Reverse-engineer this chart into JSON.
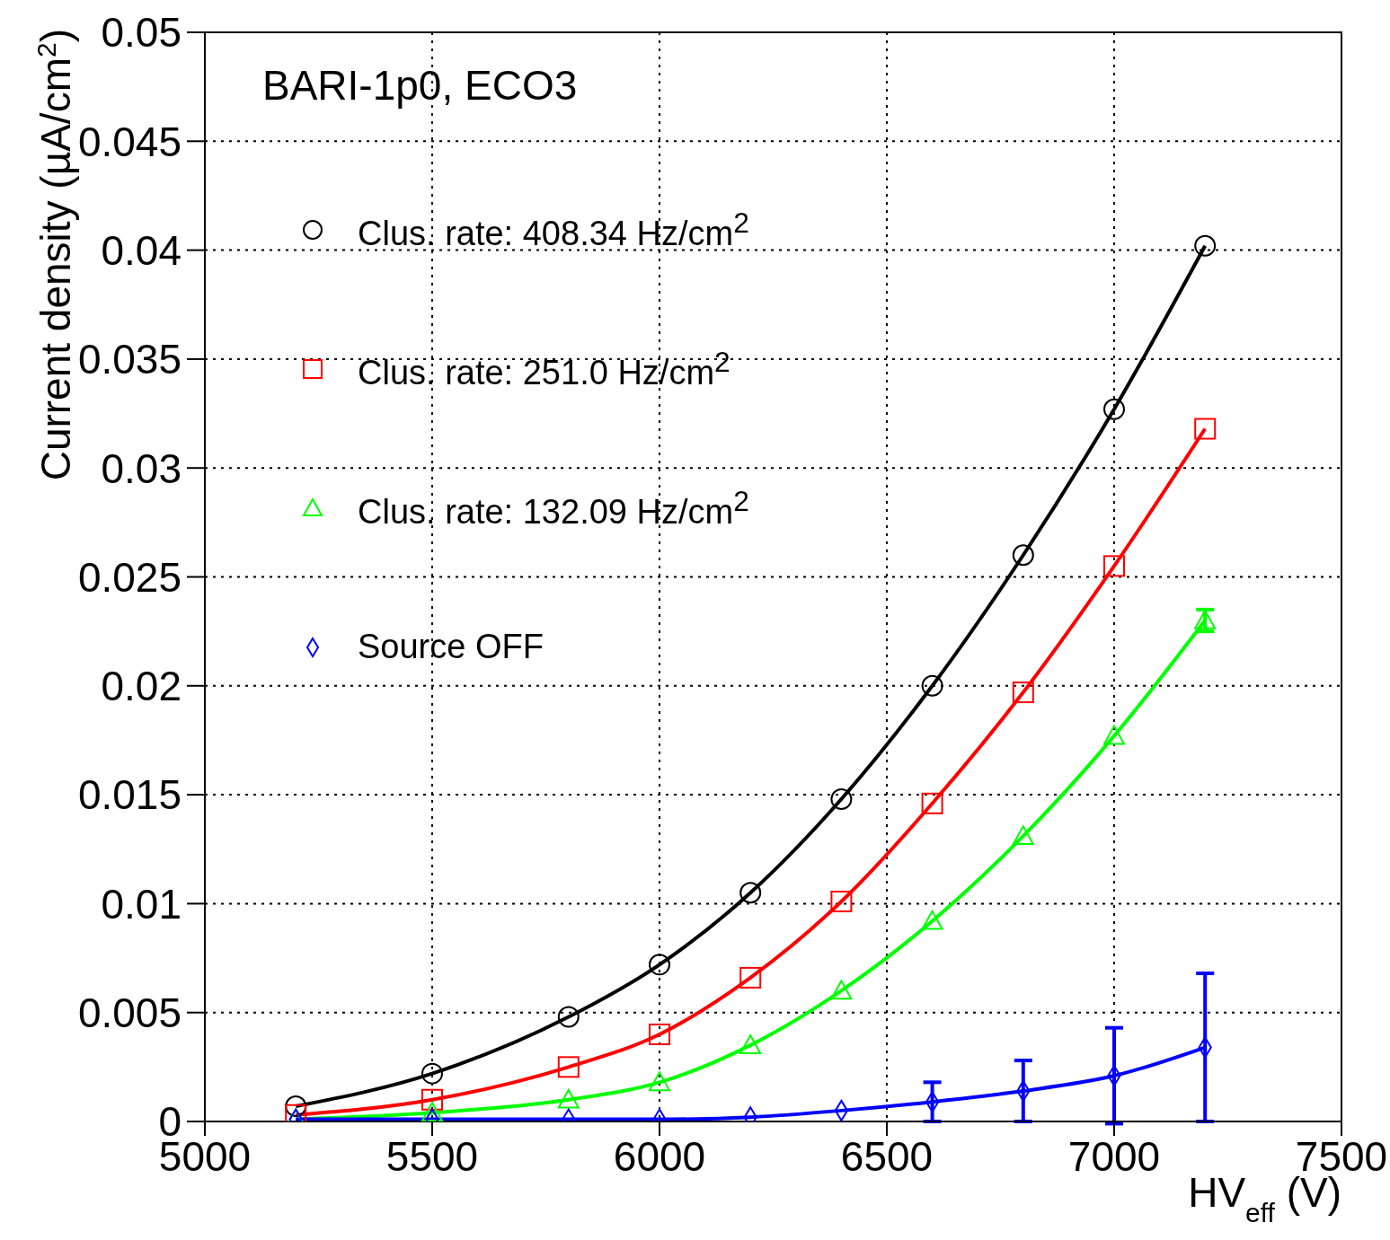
{
  "chart_data": {
    "type": "line",
    "title": "BARI-1p0, ECO3",
    "xlabel": "HV$_{eff}$ (V)",
    "ylabel": "Current density (µA/cm$^{2}$)",
    "x": [
      5200,
      5500,
      5800,
      6000,
      6200,
      6400,
      6600,
      6800,
      7000,
      7200
    ],
    "series": [
      {
        "name": "Clus. rate: 408.34 Hz/cm$^{2}$",
        "color": "#000000",
        "marker": "circle",
        "values": [
          0.0007,
          0.0022,
          0.0048,
          0.0072,
          0.0105,
          0.0148,
          0.02,
          0.026,
          0.0327,
          0.0402
        ]
      },
      {
        "name": "Clus. rate: 251.0 Hz/cm$^{2}$",
        "color": "#ff0000",
        "marker": "square",
        "values": [
          0.0003,
          0.001,
          0.0025,
          0.004,
          0.0066,
          0.0101,
          0.0146,
          0.0197,
          0.0255,
          0.0318
        ]
      },
      {
        "name": "Clus. rate: 132.09 Hz/cm$^{2}$",
        "color": "#00ff00",
        "marker": "triangle",
        "values": [
          0.0001,
          0.0004,
          0.001,
          0.0018,
          0.0035,
          0.006,
          0.0092,
          0.0131,
          0.0177,
          0.023
        ],
        "errors": [
          null,
          null,
          null,
          null,
          null,
          null,
          null,
          null,
          null,
          0.0005
        ]
      },
      {
        "name": "Source OFF",
        "color": "#0000ff",
        "marker": "diamond",
        "values": [
          0.0001,
          0.0001,
          0.0001,
          0.0001,
          0.0002,
          0.0005,
          0.0009,
          0.0014,
          0.0021,
          0.0034
        ],
        "errors": [
          null,
          null,
          null,
          null,
          null,
          null,
          0.0009,
          0.0014,
          0.0022,
          0.0034
        ]
      }
    ],
    "xlim": [
      5000,
      7500
    ],
    "xticks": [
      5000,
      5500,
      6000,
      6500,
      7000,
      7500
    ],
    "ylim": [
      0,
      0.05
    ],
    "yticks": [
      0,
      0.005,
      0.01,
      0.015,
      0.02,
      0.025,
      0.03,
      0.035,
      0.04,
      0.045,
      0.05
    ],
    "grid": true,
    "legend": "top left",
    "line_style": "solid"
  }
}
